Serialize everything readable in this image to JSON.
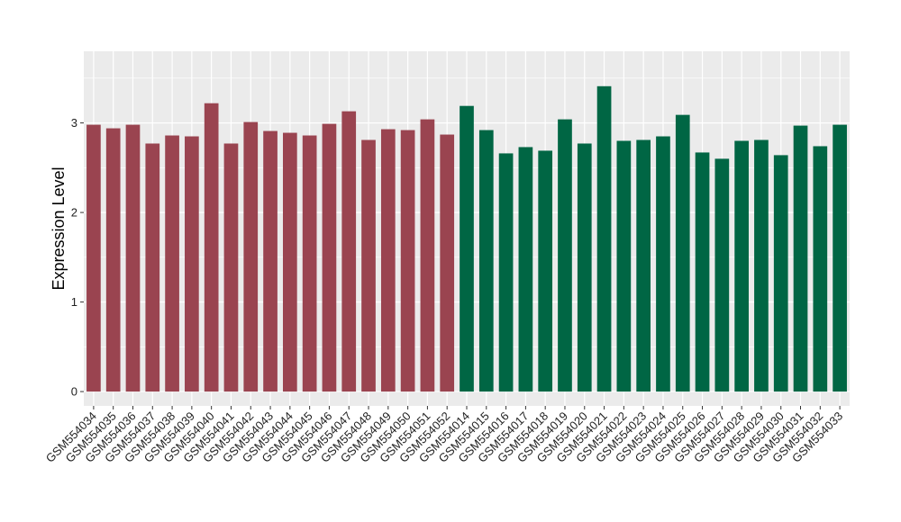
{
  "chart_data": {
    "type": "bar",
    "title": "",
    "xlabel": "",
    "ylabel": "Expression Level",
    "ylim": [
      -0.16,
      3.8
    ],
    "yticks": [
      0,
      1,
      2,
      3
    ],
    "grid": true,
    "categories": [
      "GSM554034",
      "GSM554035",
      "GSM554036",
      "GSM554037",
      "GSM554038",
      "GSM554039",
      "GSM554040",
      "GSM554041",
      "GSM554042",
      "GSM554043",
      "GSM554044",
      "GSM554045",
      "GSM554046",
      "GSM554047",
      "GSM554048",
      "GSM554049",
      "GSM554050",
      "GSM554051",
      "GSM554052",
      "GSM554014",
      "GSM554015",
      "GSM554016",
      "GSM554017",
      "GSM554018",
      "GSM554019",
      "GSM554020",
      "GSM554021",
      "GSM554022",
      "GSM554023",
      "GSM554024",
      "GSM554025",
      "GSM554026",
      "GSM554027",
      "GSM554028",
      "GSM554029",
      "GSM554030",
      "GSM554031",
      "GSM554032",
      "GSM554033"
    ],
    "values": [
      2.98,
      2.94,
      2.98,
      2.77,
      2.86,
      2.85,
      3.22,
      2.77,
      3.01,
      2.91,
      2.89,
      2.86,
      2.99,
      3.13,
      2.81,
      2.93,
      2.92,
      3.04,
      2.87,
      3.19,
      2.92,
      2.66,
      2.73,
      2.69,
      3.04,
      2.77,
      3.41,
      2.8,
      2.81,
      2.85,
      3.09,
      2.67,
      2.6,
      2.8,
      2.81,
      2.64,
      2.97,
      2.74,
      2.98
    ],
    "series_colors": [
      "#9a4450",
      "#9a4450",
      "#9a4450",
      "#9a4450",
      "#9a4450",
      "#9a4450",
      "#9a4450",
      "#9a4450",
      "#9a4450",
      "#9a4450",
      "#9a4450",
      "#9a4450",
      "#9a4450",
      "#9a4450",
      "#9a4450",
      "#9a4450",
      "#9a4450",
      "#9a4450",
      "#9a4450",
      "#006644",
      "#006644",
      "#006644",
      "#006644",
      "#006644",
      "#006644",
      "#006644",
      "#006644",
      "#006644",
      "#006644",
      "#006644",
      "#006644",
      "#006644",
      "#006644",
      "#006644",
      "#006644",
      "#006644",
      "#006644",
      "#006644",
      "#006644"
    ],
    "panel_color": "#ebebeb",
    "grid_color": "#ffffff",
    "legend": "none"
  }
}
